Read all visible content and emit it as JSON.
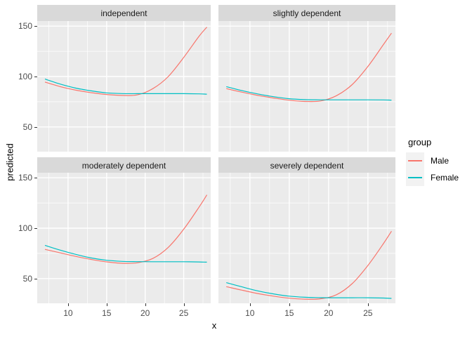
{
  "chart_data": {
    "type": "line",
    "title": "",
    "xlabel": "x",
    "ylabel": "predicted",
    "legend_title": "group",
    "legend_position": "right",
    "grid": true,
    "xlim": [
      6,
      28.5
    ],
    "ylim": [
      25.5,
      155
    ],
    "x_ticks": [
      10,
      15,
      20,
      25
    ],
    "y_ticks": [
      50,
      100,
      150
    ],
    "x_minor": [
      7.5,
      12.5,
      17.5,
      22.5,
      27.5
    ],
    "y_minor": [
      75,
      125
    ],
    "colors": {
      "male": "#F8766D",
      "female": "#00BFC4",
      "panel_bg": "#EBEBEB",
      "strip_bg": "#D9D9D9",
      "legend_key_bg": "#F2F2F2",
      "gridline": "#FFFFFF",
      "axis_text": "#4D4D4D"
    },
    "x": [
      7,
      9,
      11,
      13,
      15,
      17,
      19,
      21,
      23,
      25,
      27,
      28
    ],
    "facets": [
      {
        "label": "independent",
        "series": [
          {
            "name": "Male",
            "values": [
              94.5,
              90,
              86.5,
              84,
              82.2,
              81.3,
              81.8,
              88,
              100,
              119,
              140,
              149
            ]
          },
          {
            "name": "Female",
            "values": [
              97.5,
              92.5,
              88.5,
              85.8,
              83.8,
              83.1,
              83,
              83,
              83,
              83,
              82.8,
              82.5
            ]
          }
        ]
      },
      {
        "label": "slightly dependent",
        "series": [
          {
            "name": "Male",
            "values": [
              88,
              84.5,
              81.3,
              78.7,
              76.5,
              75.3,
              75.8,
              81,
              92,
              110,
              132,
              143
            ]
          },
          {
            "name": "Female",
            "values": [
              90,
              86,
              82.7,
              80,
              78,
              77.1,
              76.9,
              76.9,
              76.9,
              76.9,
              76.8,
              76.6
            ]
          }
        ]
      },
      {
        "label": "moderately dependent",
        "series": [
          {
            "name": "Male",
            "values": [
              79,
              75.5,
              72,
              69,
              66.6,
              65.2,
              65.7,
              70,
              81,
              99,
              121,
              133
            ]
          },
          {
            "name": "Female",
            "values": [
              83,
              78.2,
              74,
              70.5,
              68.2,
              67.1,
              66.8,
              66.7,
              66.7,
              66.7,
              66.5,
              66.3
            ]
          }
        ]
      },
      {
        "label": "severely dependent",
        "series": [
          {
            "name": "Male",
            "values": [
              42,
              38.5,
              35.2,
              32.6,
              30.6,
              29.6,
              30,
              34,
              45,
              63,
              85,
              97
            ]
          },
          {
            "name": "Female",
            "values": [
              46,
              41.8,
              37.8,
              34.8,
              32.6,
              31.5,
              31.1,
              31,
              31,
              31,
              30.7,
              30.4
            ]
          }
        ]
      }
    ],
    "legend_entries": [
      {
        "label": "Male",
        "color": "#F8766D"
      },
      {
        "label": "Female",
        "color": "#00BFC4"
      }
    ]
  }
}
